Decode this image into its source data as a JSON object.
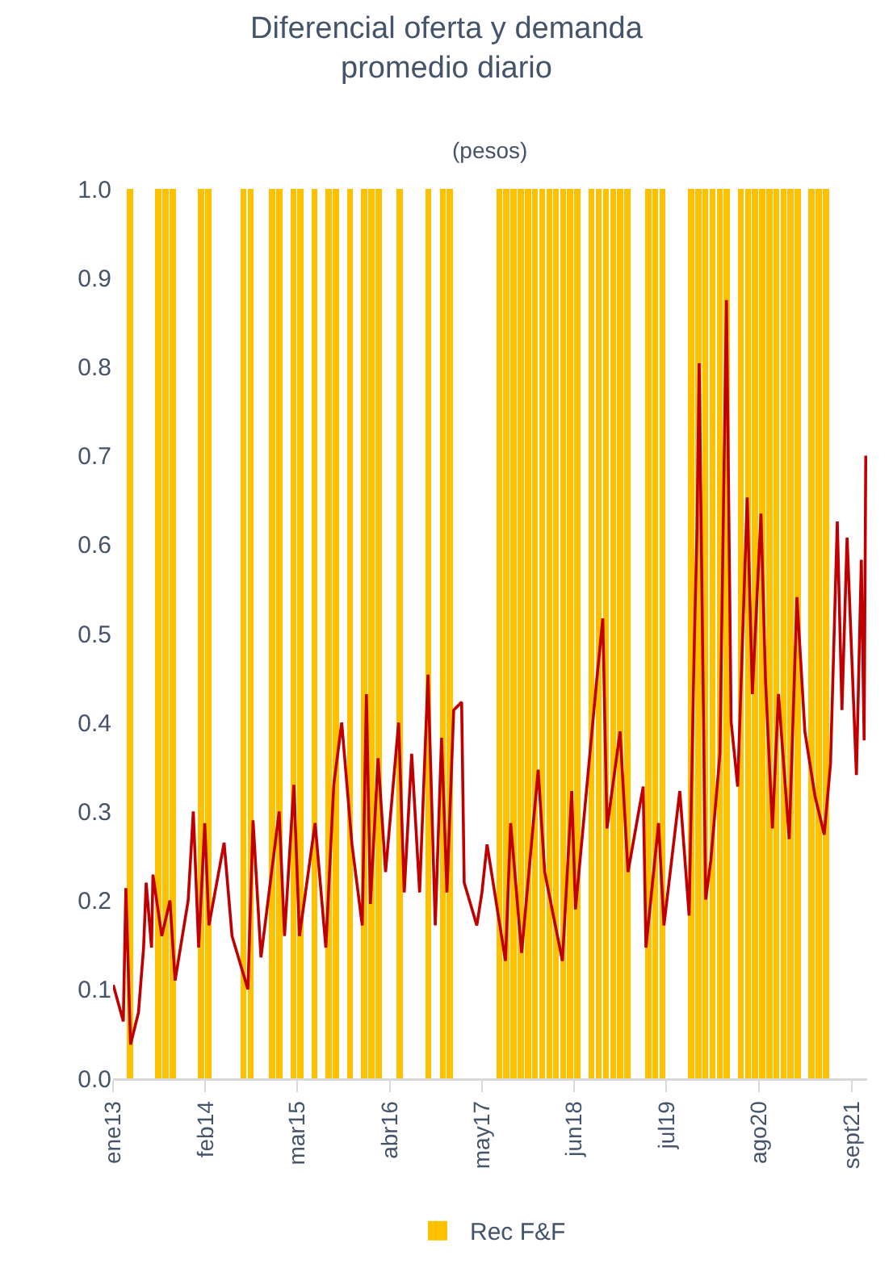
{
  "chart_data": {
    "type": "line",
    "title": "Diferencial oferta y demanda\npromedio diario",
    "subtitle": "(pesos)",
    "xlim": [
      "2013-01-01",
      "2021-11-07"
    ],
    "xticks": [
      {
        "value": "2013-01-01",
        "label": "ene13"
      },
      {
        "value": "2014-02-01",
        "label": "feb14"
      },
      {
        "value": "2015-03-01",
        "label": "mar15"
      },
      {
        "value": "2016-04-01",
        "label": "abr16"
      },
      {
        "value": "2017-05-01",
        "label": "may17"
      },
      {
        "value": "2018-06-01",
        "label": "jun18"
      },
      {
        "value": "2019-07-01",
        "label": "jul19"
      },
      {
        "value": "2020-08-01",
        "label": "ago20"
      },
      {
        "value": "2021-09-01",
        "label": "sept21"
      }
    ],
    "ylim": [
      0,
      1
    ],
    "yticks": [
      {
        "value": 0,
        "label": "0.0"
      },
      {
        "value": 0.1,
        "label": "0.1"
      },
      {
        "value": 0.2,
        "label": "0.2"
      },
      {
        "value": 0.3,
        "label": "0.3"
      },
      {
        "value": 0.4,
        "label": "0.4"
      },
      {
        "value": 0.5,
        "label": "0.5"
      },
      {
        "value": 0.6,
        "label": "0.6"
      },
      {
        "value": 0.7,
        "label": "0.7"
      },
      {
        "value": 0.8,
        "label": "0.8"
      },
      {
        "value": 0.9,
        "label": "0.9"
      },
      {
        "value": 1,
        "label": "1.0"
      }
    ],
    "legend": "bottom",
    "series": [
      {
        "type": "bar",
        "name": "Rec F&F",
        "color": "#ffc000",
        "x": [
          "2013-03",
          "2013-07",
          "2013-08",
          "2013-09",
          "2014-01",
          "2014-02",
          "2014-07",
          "2014-08",
          "2014-11",
          "2014-12",
          "2015-02",
          "2015-03",
          "2015-05",
          "2015-07",
          "2015-08",
          "2015-10",
          "2015-12",
          "2016-01",
          "2016-02",
          "2016-05",
          "2016-09",
          "2016-11",
          "2016-12",
          "2017-07",
          "2017-08",
          "2017-09",
          "2017-10",
          "2017-11",
          "2017-12",
          "2018-01",
          "2018-02",
          "2018-03",
          "2018-04",
          "2018-05",
          "2018-06",
          "2018-08",
          "2018-09",
          "2018-10",
          "2018-11",
          "2018-12",
          "2019-01",
          "2019-04",
          "2019-05",
          "2019-06",
          "2019-10",
          "2019-11",
          "2019-12",
          "2020-01",
          "2020-02",
          "2020-03",
          "2020-05",
          "2020-06",
          "2020-07",
          "2020-08",
          "2020-09",
          "2020-10",
          "2020-11",
          "2020-12",
          "2021-01",
          "2021-03",
          "2021-04",
          "2021-05"
        ],
        "values": [
          1,
          1,
          1,
          1,
          1,
          1,
          1,
          1,
          1,
          1,
          1,
          1,
          1,
          1,
          1,
          1,
          1,
          1,
          1,
          1,
          1,
          1,
          1,
          1,
          1,
          1,
          1,
          1,
          1,
          1,
          1,
          1,
          1,
          1,
          1,
          1,
          1,
          1,
          1,
          1,
          1,
          1,
          1,
          1,
          1,
          1,
          1,
          1,
          1,
          1,
          1,
          1,
          1,
          1,
          1,
          1,
          1,
          1,
          1,
          1,
          1,
          1
        ]
      },
      {
        "color": "#c00000",
        "x": [
          "2013-01-02",
          "2013-02-14",
          "2013-02-25",
          "2013-03-17",
          "2013-04-20",
          "2013-05-12",
          "2013-05-23",
          "2013-06-15",
          "2013-06-21",
          "2013-07-29",
          "2013-09-02",
          "2013-09-24",
          "2013-11-19",
          "2013-12-11",
          "2014-01-03",
          "2014-01-29",
          "2014-02-16",
          "2014-04-22",
          "2014-05-26",
          "2014-08-02",
          "2014-08-24",
          "2014-09-27",
          "2014-12-14",
          "2015-01-06",
          "2015-02-15",
          "2015-03-11",
          "2015-05-17",
          "2015-07-02",
          "2015-08-05",
          "2015-09-08",
          "2015-10-22",
          "2015-12-05",
          "2015-12-23",
          "2016-01-09",
          "2016-02-11",
          "2016-03-14",
          "2016-05-09",
          "2016-06-02",
          "2016-07-04",
          "2016-08-07",
          "2016-09-12",
          "2016-10-13",
          "2016-11-09",
          "2016-12-02",
          "2016-12-31",
          "2017-02-03",
          "2017-02-14",
          "2017-04-09",
          "2017-05-01",
          "2017-05-23",
          "2017-08-10",
          "2017-09-01",
          "2017-10-18",
          "2017-12-28",
          "2018-01-25",
          "2018-04-11",
          "2018-05-21",
          "2018-06-06",
          "2018-09-04",
          "2018-10-01",
          "2018-10-19",
          "2018-12-14",
          "2019-01-17",
          "2019-03-23",
          "2019-04-04",
          "2019-05-28",
          "2019-06-20",
          "2019-08-27",
          "2019-10-06",
          "2019-10-28",
          "2019-11-09",
          "2019-11-18",
          "2019-12-16",
          "2020-01-07",
          "2020-02-15",
          "2020-03-14",
          "2020-04-03",
          "2020-05-01",
          "2020-06-11",
          "2020-07-03",
          "2020-08-09",
          "2020-08-28",
          "2020-09-27",
          "2020-10-23",
          "2020-12-08",
          "2021-01-10",
          "2021-02-13",
          "2021-03-28",
          "2021-05-07",
          "2021-06-03",
          "2021-07-02",
          "2021-07-22",
          "2021-08-13",
          "2021-09-22",
          "2021-10-13",
          "2021-10-25",
          "2021-11-01"
        ],
        "values": [
          0.105,
          0.064,
          0.214,
          0.038,
          0.074,
          0.147,
          0.22,
          0.147,
          0.229,
          0.16,
          0.2,
          0.11,
          0.2,
          0.3,
          0.147,
          0.287,
          0.172,
          0.265,
          0.16,
          0.1,
          0.29,
          0.136,
          0.3,
          0.16,
          0.33,
          0.16,
          0.287,
          0.147,
          0.33,
          0.4,
          0.263,
          0.172,
          0.432,
          0.196,
          0.36,
          0.232,
          0.4,
          0.209,
          0.365,
          0.209,
          0.454,
          0.172,
          0.383,
          0.209,
          0.414,
          0.423,
          0.22,
          0.172,
          0.209,
          0.263,
          0.132,
          0.287,
          0.141,
          0.347,
          0.232,
          0.132,
          0.323,
          0.19,
          0.445,
          0.517,
          0.281,
          0.39,
          0.232,
          0.328,
          0.147,
          0.287,
          0.172,
          0.323,
          0.183,
          0.487,
          0.619,
          0.804,
          0.201,
          0.245,
          0.365,
          0.875,
          0.401,
          0.328,
          0.653,
          0.432,
          0.635,
          0.45,
          0.281,
          0.432,
          0.269,
          0.541,
          0.39,
          0.318,
          0.274,
          0.354,
          0.626,
          0.414,
          0.608,
          0.341,
          0.583,
          0.38,
          0.7
        ]
      }
    ]
  }
}
